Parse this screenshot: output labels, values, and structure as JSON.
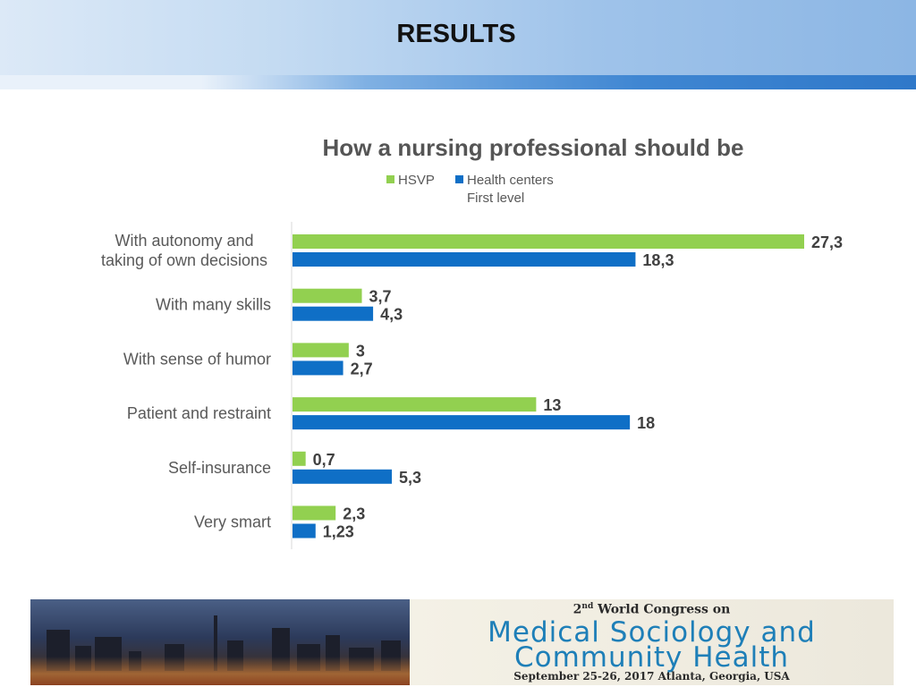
{
  "slide": {
    "title": "RESULTS"
  },
  "chart_data": {
    "type": "bar",
    "orientation": "horizontal",
    "title": "How a nursing professional should be",
    "categories": [
      "With autonomy and taking of own decisions",
      "With many skills",
      "With sense of humor",
      "Patient and restraint",
      "Self-insurance",
      "Very smart"
    ],
    "series": [
      {
        "name": "HSVP",
        "color": "#92d050",
        "values": [
          27.3,
          3.7,
          3,
          13,
          0.7,
          2.3
        ],
        "labels": [
          "27,3",
          "3,7",
          "3",
          "13",
          "0,7",
          "2,3"
        ]
      },
      {
        "name": "Health centers First level",
        "color": "#0f6fc6",
        "values": [
          18.3,
          4.3,
          2.7,
          18,
          5.3,
          1.23
        ],
        "labels": [
          "18,3",
          "4,3",
          "2,7",
          "18",
          "5,3",
          "1,23"
        ]
      }
    ],
    "legend": {
      "position": "top",
      "items": [
        {
          "lines": [
            "HSVP"
          ],
          "color": "#92d050"
        },
        {
          "lines": [
            "Health centers",
            "First level"
          ],
          "color": "#0f6fc6"
        }
      ]
    },
    "xlim": [
      0,
      27.3
    ],
    "grid": false,
    "axis_labels_shown": false
  },
  "footer": {
    "congress_line1_prefix": "2",
    "congress_line1_sup": "nd",
    "congress_line1_rest": " World Congress on",
    "congress_line2": "Medical Sociology and",
    "congress_line3": "Community Health",
    "congress_line4": "September 25-26, 2017 Atlanta, Georgia, USA"
  }
}
